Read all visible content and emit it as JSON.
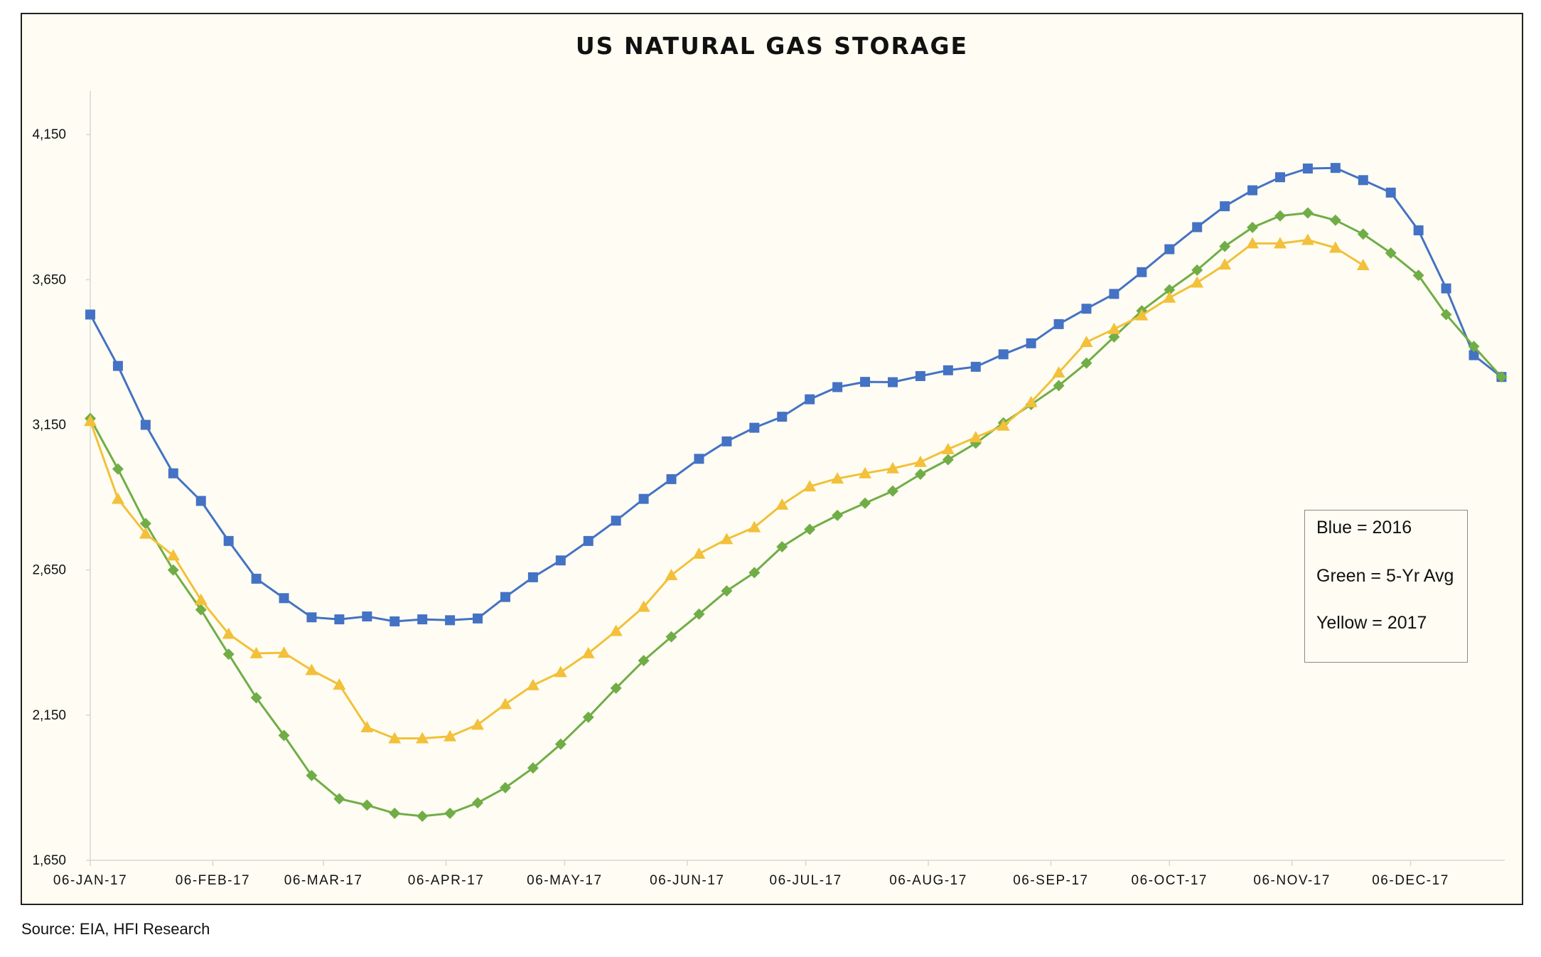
{
  "chart_data": {
    "type": "line",
    "title": "US NATURAL GAS STORAGE",
    "xlabel": "",
    "ylabel": "",
    "ylim": [
      1650,
      4300
    ],
    "y_ticks": [
      "1,650",
      "2,150",
      "2,650",
      "3,150",
      "3,650",
      "4,150"
    ],
    "y_tick_values": [
      1650,
      2150,
      2650,
      3150,
      3650,
      4150
    ],
    "x_ticks": [
      "06-JAN-17",
      "06-FEB-17",
      "06-MAR-17",
      "06-APR-17",
      "06-MAY-17",
      "06-JUN-17",
      "06-JUL-17",
      "06-AUG-17",
      "06-SEP-17",
      "06-OCT-17",
      "06-NOV-17",
      "06-DEC-17"
    ],
    "x_start": "2017-01-06",
    "x_step_days": 7,
    "grid": false,
    "legend_placement": "right",
    "legend_entries": [
      "Blue = 2016",
      "Green = 5-Yr Avg",
      "Yellow = 2017"
    ],
    "series": [
      {
        "color": "#4472c4",
        "marker": "square",
        "values": [
          3530,
          3353,
          3150,
          2983,
          2888,
          2750,
          2620,
          2553,
          2487,
          2480,
          2490,
          2473,
          2480,
          2477,
          2483,
          2557,
          2625,
          2683,
          2750,
          2820,
          2895,
          2963,
          3033,
          3093,
          3140,
          3178,
          3238,
          3280,
          3298,
          3297,
          3318,
          3338,
          3350,
          3393,
          3431,
          3497,
          3550,
          3601,
          3676,
          3755,
          3831,
          3903,
          3958,
          4003,
          4033,
          4035,
          3993,
          3950,
          3820,
          3620,
          3390,
          3315
        ]
      },
      {
        "color": "#70ad47",
        "marker": "diamond",
        "values": [
          3172,
          2998,
          2810,
          2650,
          2513,
          2360,
          2210,
          2080,
          1942,
          1862,
          1840,
          1812,
          1802,
          1812,
          1848,
          1900,
          1968,
          2050,
          2143,
          2243,
          2338,
          2420,
          2498,
          2578,
          2641,
          2730,
          2790,
          2838,
          2880,
          2922,
          2980,
          3030,
          3087,
          3157,
          3220,
          3285,
          3363,
          3453,
          3543,
          3615,
          3683,
          3765,
          3830,
          3870,
          3880,
          3855,
          3807,
          3742,
          3665,
          3530,
          3420,
          3315
        ]
      },
      {
        "color": "#f2c03a",
        "marker": "triangle",
        "values": [
          3163,
          2895,
          2775,
          2700,
          2547,
          2430,
          2363,
          2365,
          2305,
          2255,
          2108,
          2070,
          2070,
          2077,
          2117,
          2188,
          2253,
          2298,
          2363,
          2440,
          2523,
          2632,
          2706,
          2756,
          2797,
          2875,
          2938,
          2965,
          2983,
          3000,
          3022,
          3066,
          3107,
          3147,
          3228,
          3330,
          3435,
          3480,
          3527,
          3588,
          3640,
          3702,
          3775,
          3775,
          3787,
          3760,
          3700
        ]
      }
    ],
    "source": "Source: EIA, HFI Research"
  }
}
